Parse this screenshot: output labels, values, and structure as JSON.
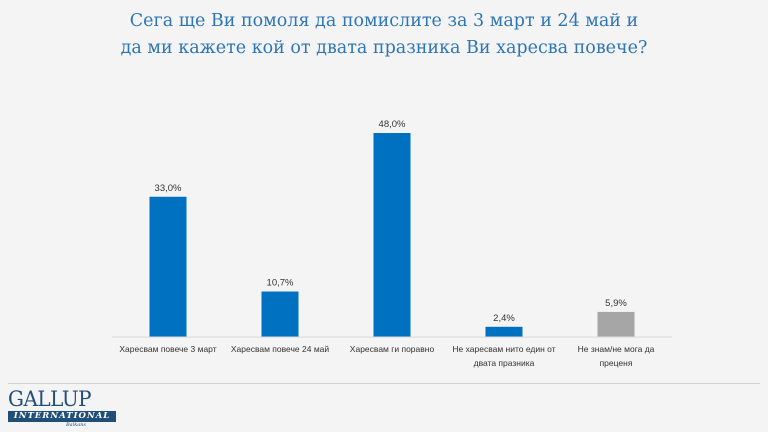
{
  "title_lines": [
    "Сега ще Ви помоля да помислите за 3 март и 24 май и",
    "да ми кажете кой от двата празника Ви харесва повече?"
  ],
  "chart_data": {
    "type": "bar",
    "title": "Сега ще Ви помоля да помислите за 3 март и 24 май и да ми кажете кой от двата празника Ви харесва повече?",
    "categories": [
      [
        "Харесвам повече 3 март"
      ],
      [
        "Харесвам повече 24 май"
      ],
      [
        "Харесвам ги поравно"
      ],
      [
        "Не харесвам нито един от",
        "двата празника"
      ],
      [
        "Не знам/не мога да",
        "преценя"
      ]
    ],
    "values": [
      33.0,
      10.7,
      48.0,
      2.4,
      5.9
    ],
    "data_labels": [
      "33,0%",
      "10,7%",
      "48,0%",
      "2,4%",
      "5,9%"
    ],
    "colors": [
      "#0070c0",
      "#0070c0",
      "#0070c0",
      "#0070c0",
      "#a6a6a6"
    ],
    "ylim": [
      0,
      50
    ],
    "grid": false,
    "xlabel": "",
    "ylabel": ""
  },
  "logo": {
    "main": "GALLUP",
    "band": "INTERNATIONAL",
    "sub": "Balkans"
  }
}
